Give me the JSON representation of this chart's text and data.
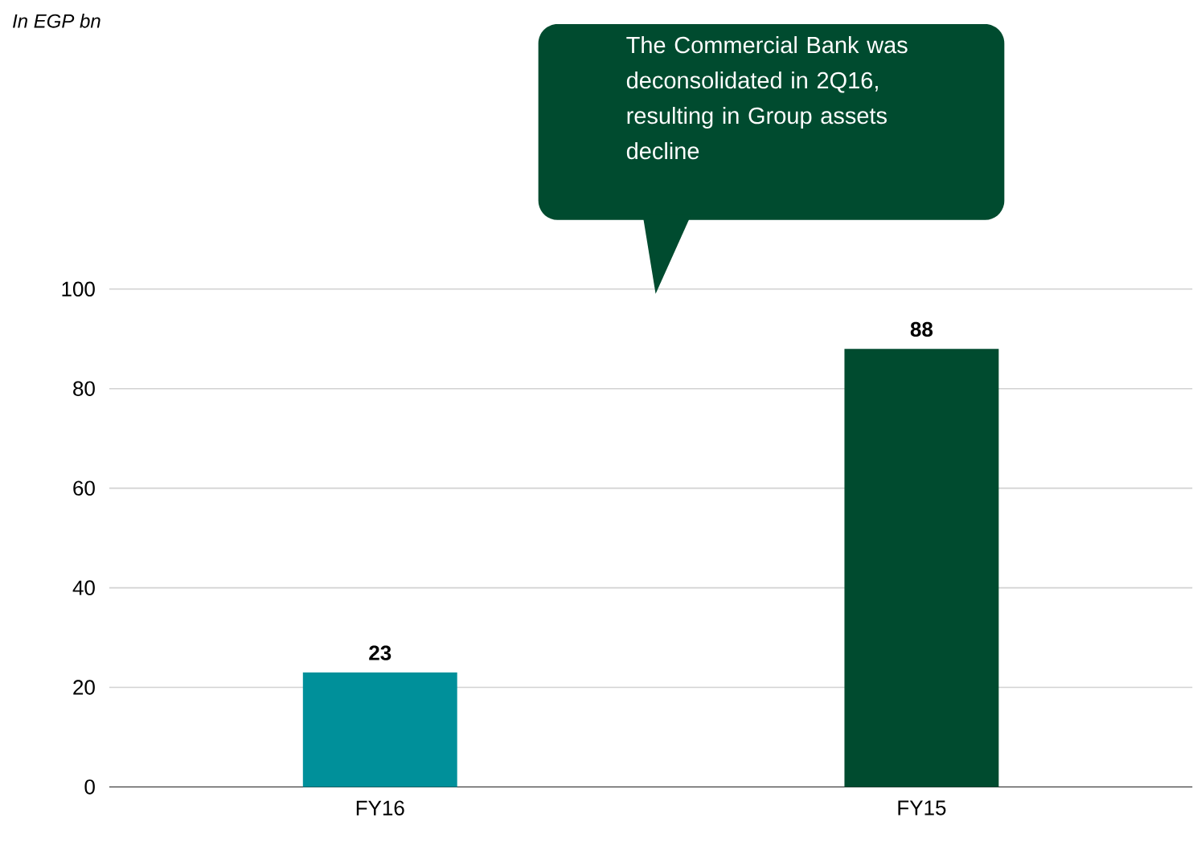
{
  "chart_data": {
    "type": "bar",
    "categories": [
      "FY16",
      "FY15"
    ],
    "values": [
      23,
      88
    ],
    "colors": [
      "#00909a",
      "#004b2f"
    ],
    "ylim": [
      0,
      100
    ],
    "yticks": [
      0,
      20,
      40,
      60,
      80,
      100
    ],
    "grid": "y",
    "data_labels": true,
    "annotations": [
      "In EGP bn",
      "The Commercial Bank was deconsolidated in 2Q16, resulting in Group assets decline"
    ]
  }
}
